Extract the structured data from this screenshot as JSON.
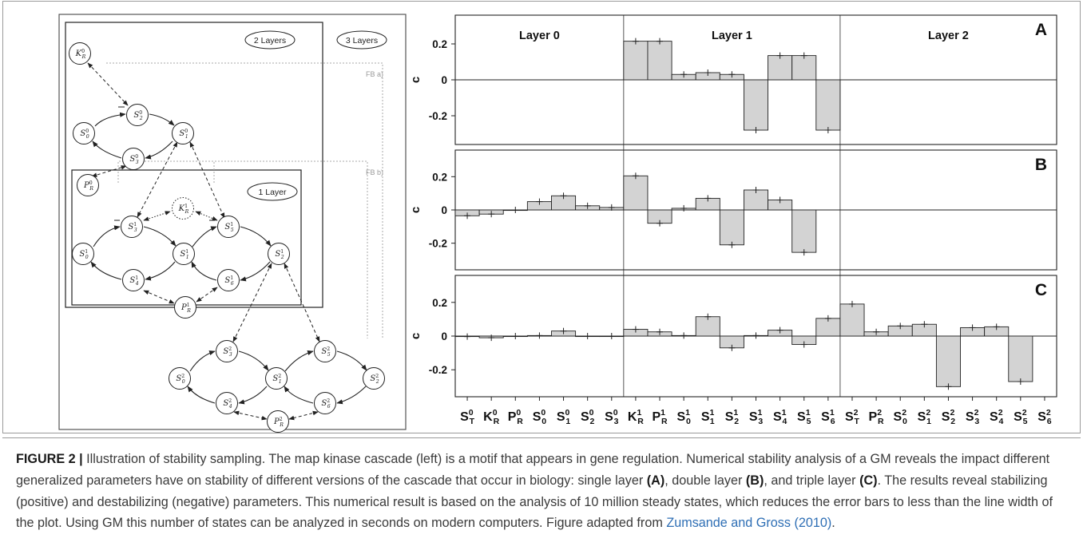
{
  "diagram": {
    "box_labels": [
      "2 Layers",
      "3 Layers",
      "1 Layer"
    ],
    "feedback_labels": [
      "FB a)",
      "FB b)"
    ],
    "nodes": {
      "KR0": {
        "base": "K",
        "sup": "0",
        "sub": "R"
      },
      "S02": {
        "base": "S",
        "sup": "0",
        "sub": "2"
      },
      "S00": {
        "base": "S",
        "sup": "0",
        "sub": "0"
      },
      "S01": {
        "base": "S",
        "sup": "0",
        "sub": "1"
      },
      "S03": {
        "base": "S",
        "sup": "0",
        "sub": "3"
      },
      "PR0": {
        "base": "P",
        "sup": "0",
        "sub": "R"
      },
      "KR1": {
        "base": "K",
        "sup": "1",
        "sub": "R"
      },
      "S13": {
        "base": "S",
        "sup": "1",
        "sub": "3"
      },
      "S15": {
        "base": "S",
        "sup": "1",
        "sub": "5"
      },
      "S10": {
        "base": "S",
        "sup": "1",
        "sub": "0"
      },
      "S11": {
        "base": "S",
        "sup": "1",
        "sub": "1"
      },
      "S12": {
        "base": "S",
        "sup": "1",
        "sub": "2"
      },
      "S14": {
        "base": "S",
        "sup": "1",
        "sub": "4"
      },
      "S16": {
        "base": "S",
        "sup": "1",
        "sub": "6"
      },
      "PR1": {
        "base": "P",
        "sup": "1",
        "sub": "R"
      },
      "S23": {
        "base": "S",
        "sup": "2",
        "sub": "3"
      },
      "S25": {
        "base": "S",
        "sup": "2",
        "sub": "5"
      },
      "S20": {
        "base": "S",
        "sup": "2",
        "sub": "0"
      },
      "S21": {
        "base": "S",
        "sup": "2",
        "sub": "1"
      },
      "S22": {
        "base": "S",
        "sup": "2",
        "sub": "2"
      },
      "S24": {
        "base": "S",
        "sup": "2",
        "sub": "4"
      },
      "S26": {
        "base": "S",
        "sup": "2",
        "sub": "6"
      },
      "PR2": {
        "base": "P",
        "sup": "2",
        "sub": "R"
      }
    }
  },
  "chart_data": {
    "type": "bar",
    "ylabel": "c",
    "ylim": [
      -0.36,
      0.36
    ],
    "yticks": [
      0.2,
      0,
      -0.2
    ],
    "ytick_labels": [
      "0.2",
      "0",
      "-0.2"
    ],
    "section_labels": [
      "Layer 0",
      "Layer 1",
      "Layer 2"
    ],
    "categories": [
      {
        "base": "S",
        "sup": "0",
        "sub": "T"
      },
      {
        "base": "K",
        "sup": "0",
        "sub": "R"
      },
      {
        "base": "P",
        "sup": "0",
        "sub": "R"
      },
      {
        "base": "S",
        "sup": "0",
        "sub": "0"
      },
      {
        "base": "S",
        "sup": "0",
        "sub": "1"
      },
      {
        "base": "S",
        "sup": "0",
        "sub": "2"
      },
      {
        "base": "S",
        "sup": "0",
        "sub": "3"
      },
      {
        "base": "K",
        "sup": "1",
        "sub": "R"
      },
      {
        "base": "P",
        "sup": "1",
        "sub": "R"
      },
      {
        "base": "S",
        "sup": "1",
        "sub": "0"
      },
      {
        "base": "S",
        "sup": "1",
        "sub": "1"
      },
      {
        "base": "S",
        "sup": "1",
        "sub": "2"
      },
      {
        "base": "S",
        "sup": "1",
        "sub": "3"
      },
      {
        "base": "S",
        "sup": "1",
        "sub": "4"
      },
      {
        "base": "S",
        "sup": "1",
        "sub": "5"
      },
      {
        "base": "S",
        "sup": "1",
        "sub": "6"
      },
      {
        "base": "S",
        "sup": "2",
        "sub": "T"
      },
      {
        "base": "P",
        "sup": "2",
        "sub": "R"
      },
      {
        "base": "S",
        "sup": "2",
        "sub": "0"
      },
      {
        "base": "S",
        "sup": "2",
        "sub": "1"
      },
      {
        "base": "S",
        "sup": "2",
        "sub": "2"
      },
      {
        "base": "S",
        "sup": "2",
        "sub": "3"
      },
      {
        "base": "S",
        "sup": "2",
        "sub": "4"
      },
      {
        "base": "S",
        "sup": "2",
        "sub": "5"
      },
      {
        "base": "S",
        "sup": "2",
        "sub": "6"
      }
    ],
    "panels": [
      {
        "label": "A",
        "values": [
          null,
          null,
          null,
          null,
          null,
          null,
          null,
          0.215,
          0.215,
          0.03,
          0.04,
          0.03,
          -0.28,
          0.135,
          0.135,
          -0.28,
          null,
          null,
          null,
          null,
          null,
          null,
          null,
          null,
          null
        ]
      },
      {
        "label": "B",
        "values": [
          -0.035,
          -0.025,
          0.0,
          0.05,
          0.085,
          0.025,
          0.015,
          0.205,
          -0.08,
          0.01,
          0.07,
          -0.21,
          0.12,
          0.06,
          -0.255,
          null,
          null,
          null,
          null,
          null,
          null,
          null,
          null,
          null,
          null
        ]
      },
      {
        "label": "C",
        "values": [
          -0.003,
          -0.01,
          0.0,
          0.003,
          0.03,
          0.0,
          0.0,
          0.04,
          0.025,
          0.003,
          0.115,
          -0.07,
          0.003,
          0.035,
          -0.05,
          0.105,
          0.19,
          0.025,
          0.06,
          0.07,
          -0.3,
          0.05,
          0.055,
          -0.27,
          null
        ]
      }
    ],
    "bar_color": "#d3d3d3"
  },
  "caption": {
    "label": "FIGURE 2 |",
    "text_1": " Illustration of stability sampling. The map kinase cascade (left) is a motif that appears in gene regulation. Numerical stability analysis of a GM reveals the impact different generalized parameters have on stability of different versions of the cascade that occur in biology: single layer ",
    "ref_a": "(A)",
    "text_2": ", double layer ",
    "ref_b": "(B)",
    "text_3": ", and triple layer ",
    "ref_c": "(C)",
    "text_4": ". The results reveal stabilizing (positive) and destabilizing (negative) parameters. This numerical result is based on the analysis of 10 million steady states, which reduces the error bars to less than the line width of the plot. Using GM this number of states can be analyzed in seconds on modern computers. Figure adapted from ",
    "citation": "Zumsande and Gross (2010)",
    "text_5": "."
  }
}
